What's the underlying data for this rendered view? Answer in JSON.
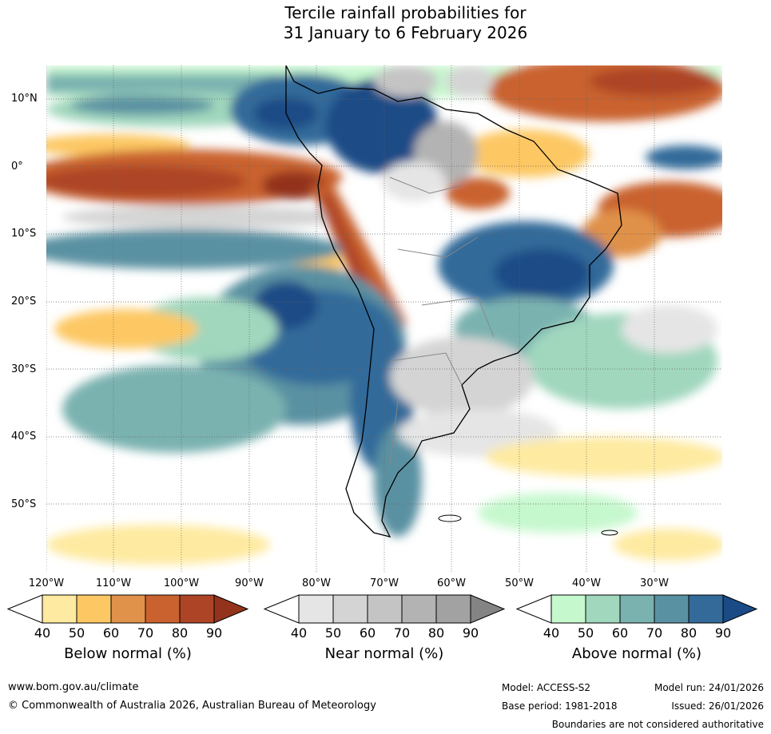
{
  "title_line1": "Tercile rainfall probabilities for",
  "title_line2": "31 January to 6 February 2026",
  "lat_labels": [
    "10°N",
    "0°",
    "10°S",
    "20°S",
    "30°S",
    "40°S",
    "50°S"
  ],
  "lon_labels": [
    "120°W",
    "110°W",
    "100°W",
    "90°W",
    "80°W",
    "70°W",
    "60°W",
    "50°W",
    "40°W",
    "30°W"
  ],
  "colorbars": [
    {
      "label": "Below normal (%)",
      "ticks": [
        "40",
        "50",
        "60",
        "70",
        "80",
        "90"
      ],
      "colors": [
        "#ffffff",
        "#feeaa0",
        "#fdc863",
        "#e0914a",
        "#c9622f",
        "#ad4426",
        "#93331c"
      ]
    },
    {
      "label": "Near normal (%)",
      "ticks": [
        "40",
        "50",
        "60",
        "70",
        "80",
        "90"
      ],
      "colors": [
        "#ffffff",
        "#e5e5e5",
        "#d4d4d4",
        "#c4c4c4",
        "#b3b3b3",
        "#a2a2a2",
        "#848484"
      ]
    },
    {
      "label": "Above normal (%)",
      "ticks": [
        "40",
        "50",
        "60",
        "70",
        "80",
        "90"
      ],
      "colors": [
        "#ffffff",
        "#c6f8ce",
        "#a0d7bd",
        "#7ab2b0",
        "#5a91a2",
        "#336a9a",
        "#1a4b86"
      ]
    }
  ],
  "footer": {
    "url": "www.bom.gov.au/climate",
    "copyright": "© Commonwealth of Australia 2026, Australian Bureau of Meteorology",
    "model": "Model: ACCESS-S2",
    "model_run": "Model run: 24/01/2026",
    "base_period": "Base period: 1981-2018",
    "issued": "Issued: 26/01/2026",
    "disclaimer": "Boundaries are not considered authoritative"
  }
}
